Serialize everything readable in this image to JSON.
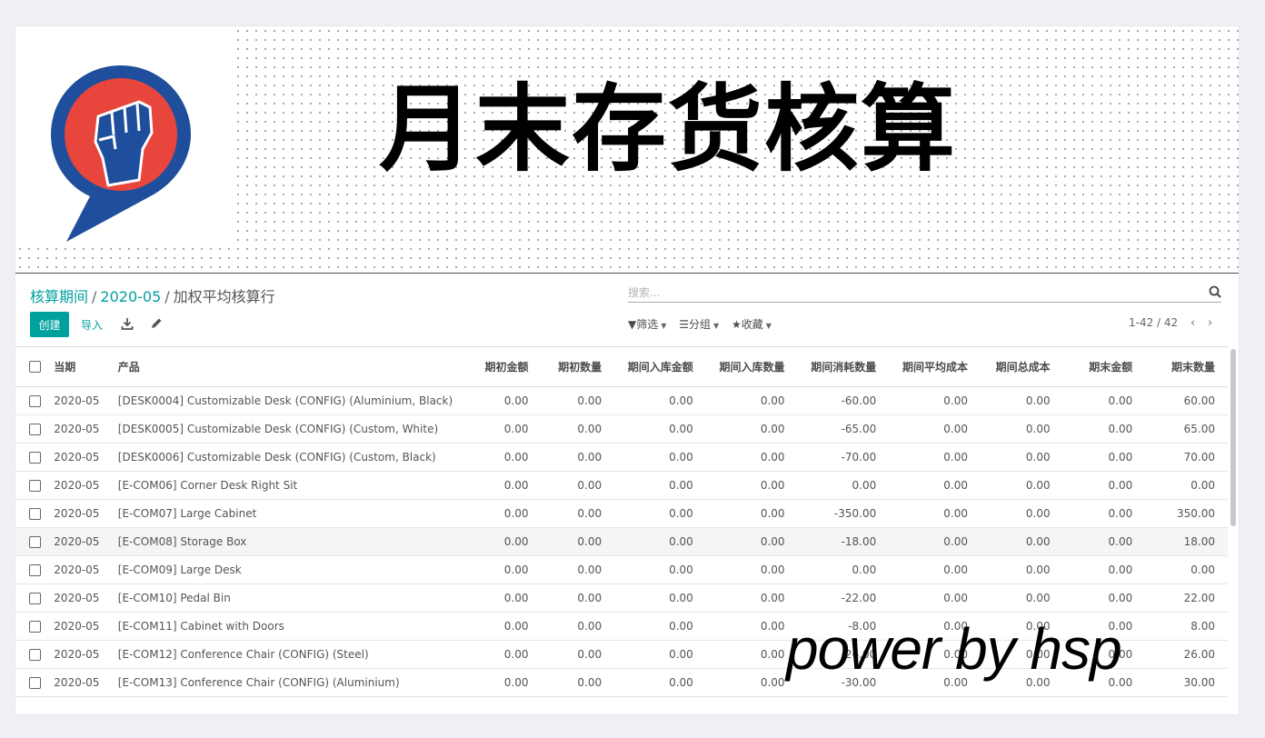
{
  "banner": {
    "title": "月末存货核算"
  },
  "breadcrumb": {
    "level1": "核算期间",
    "level2": "2020-05",
    "current": "加权平均核算行",
    "separator": "/"
  },
  "search": {
    "placeholder": "搜索..."
  },
  "toolbar": {
    "create_label": "创建",
    "import_label": "导入"
  },
  "filters": {
    "filter_label": "筛选",
    "group_label": "分组",
    "favorites_label": "收藏"
  },
  "pager": {
    "value": "1-42 / 42"
  },
  "table": {
    "headers": [
      "当期",
      "产品",
      "期初金额",
      "期初数量",
      "期间入库金额",
      "期间入库数量",
      "期间消耗数量",
      "期间平均成本",
      "期间总成本",
      "期末金额",
      "期末数量"
    ],
    "rows": [
      [
        "2020-05",
        "[DESK0004] Customizable Desk (CONFIG) (Aluminium, Black)",
        "0.00",
        "0.00",
        "0.00",
        "0.00",
        "-60.00",
        "0.00",
        "0.00",
        "0.00",
        "60.00"
      ],
      [
        "2020-05",
        "[DESK0005] Customizable Desk (CONFIG) (Custom, White)",
        "0.00",
        "0.00",
        "0.00",
        "0.00",
        "-65.00",
        "0.00",
        "0.00",
        "0.00",
        "65.00"
      ],
      [
        "2020-05",
        "[DESK0006] Customizable Desk (CONFIG) (Custom, Black)",
        "0.00",
        "0.00",
        "0.00",
        "0.00",
        "-70.00",
        "0.00",
        "0.00",
        "0.00",
        "70.00"
      ],
      [
        "2020-05",
        "[E-COM06] Corner Desk Right Sit",
        "0.00",
        "0.00",
        "0.00",
        "0.00",
        "0.00",
        "0.00",
        "0.00",
        "0.00",
        "0.00"
      ],
      [
        "2020-05",
        "[E-COM07] Large Cabinet",
        "0.00",
        "0.00",
        "0.00",
        "0.00",
        "-350.00",
        "0.00",
        "0.00",
        "0.00",
        "350.00"
      ],
      [
        "2020-05",
        "[E-COM08] Storage Box",
        "0.00",
        "0.00",
        "0.00",
        "0.00",
        "-18.00",
        "0.00",
        "0.00",
        "0.00",
        "18.00"
      ],
      [
        "2020-05",
        "[E-COM09] Large Desk",
        "0.00",
        "0.00",
        "0.00",
        "0.00",
        "0.00",
        "0.00",
        "0.00",
        "0.00",
        "0.00"
      ],
      [
        "2020-05",
        "[E-COM10] Pedal Bin",
        "0.00",
        "0.00",
        "0.00",
        "0.00",
        "-22.00",
        "0.00",
        "0.00",
        "0.00",
        "22.00"
      ],
      [
        "2020-05",
        "[E-COM11] Cabinet with Doors",
        "0.00",
        "0.00",
        "0.00",
        "0.00",
        "-8.00",
        "0.00",
        "0.00",
        "0.00",
        "8.00"
      ],
      [
        "2020-05",
        "[E-COM12] Conference Chair (CONFIG) (Steel)",
        "0.00",
        "0.00",
        "0.00",
        "0.00",
        "-26.00",
        "0.00",
        "0.00",
        "0.00",
        "26.00"
      ],
      [
        "2020-05",
        "[E-COM13] Conference Chair (CONFIG) (Aluminium)",
        "0.00",
        "0.00",
        "0.00",
        "0.00",
        "-30.00",
        "0.00",
        "0.00",
        "0.00",
        "30.00"
      ]
    ],
    "highlighted_row": 5
  },
  "watermark": {
    "text": "power by hsp"
  },
  "colors": {
    "accent": "#00a09d",
    "logo_blue": "#1f4f9c",
    "logo_red": "#e8453c"
  }
}
